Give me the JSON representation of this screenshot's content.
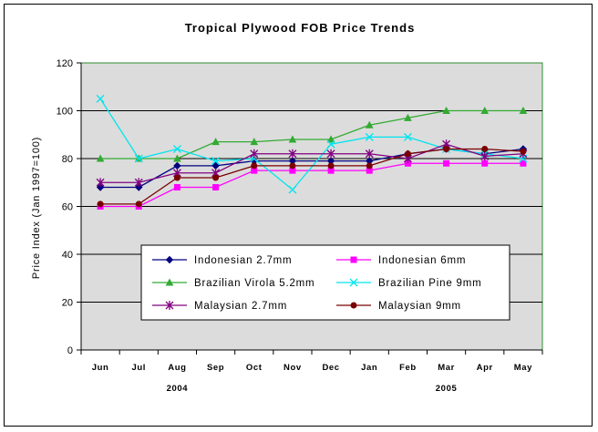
{
  "chart_data": {
    "type": "line",
    "title": "Tropical Plywood FOB Price Trends",
    "ylabel": "Price Index (Jan 1997=100)",
    "xlabel": "",
    "ylim": [
      0,
      120
    ],
    "yticks": [
      0,
      20,
      40,
      60,
      80,
      100,
      120
    ],
    "grid": true,
    "plot_background": "#dcdcdc",
    "plot_border_color": "#2e8b2e",
    "categories": [
      "Jun",
      "Jul",
      "Aug",
      "Sep",
      "Oct",
      "Nov",
      "Dec",
      "Jan",
      "Feb",
      "Mar",
      "Apr",
      "May"
    ],
    "year_labels": [
      {
        "label": "2004",
        "after_category": "Aug"
      },
      {
        "label": "2005",
        "after_category": "Mar"
      }
    ],
    "legend_position": "lower-center",
    "series": [
      {
        "name": "Indonesian 2.7mm",
        "color": "#000080",
        "marker": "diamond",
        "values": [
          68,
          68,
          77,
          77,
          79,
          79,
          79,
          79,
          82,
          84,
          82,
          84
        ]
      },
      {
        "name": "Indonesian 6mm",
        "color": "#ff00ff",
        "marker": "square",
        "values": [
          60,
          60,
          68,
          68,
          75,
          75,
          75,
          75,
          78,
          78,
          78,
          78
        ]
      },
      {
        "name": "Brazilian Virola 5.2mm",
        "color": "#33aa33",
        "marker": "triangle",
        "values": [
          80,
          80,
          80,
          87,
          87,
          88,
          88,
          94,
          97,
          100,
          100,
          100
        ]
      },
      {
        "name": "Brazilian Pine 9mm",
        "color": "#00e5ee",
        "marker": "cross",
        "values": [
          105,
          80,
          84,
          79,
          80,
          67,
          86,
          89,
          89,
          84,
          82,
          80
        ]
      },
      {
        "name": "Malaysian 2.7mm",
        "color": "#800080",
        "marker": "asterisk",
        "values": [
          70,
          70,
          74,
          74,
          82,
          82,
          82,
          82,
          80,
          86,
          81,
          82
        ]
      },
      {
        "name": "Malaysian 9mm",
        "color": "#7a0000",
        "marker": "circle",
        "values": [
          61,
          61,
          72,
          72,
          77,
          77,
          77,
          77,
          82,
          84,
          84,
          83
        ]
      }
    ]
  }
}
